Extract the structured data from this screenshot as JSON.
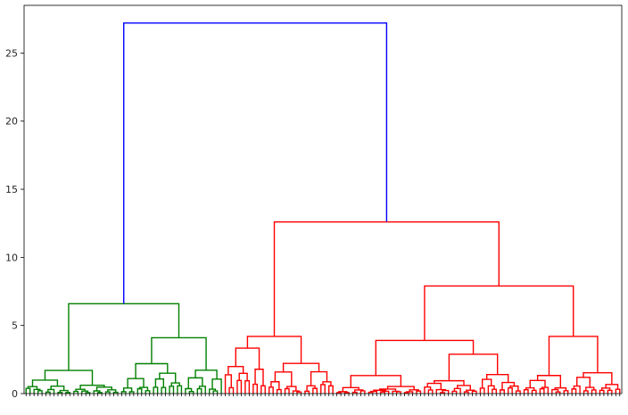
{
  "chart_data": {
    "type": "dendrogram",
    "title": "",
    "xlabel": "",
    "ylabel": "",
    "ylim": [
      0,
      28.5
    ],
    "yticks": [
      0,
      5,
      10,
      15,
      20,
      25
    ],
    "grid": false,
    "leaf_count": 150,
    "colors": {
      "cluster_1": "#008000",
      "cluster_2": "#ff0000",
      "above_threshold": "#0000ff"
    },
    "merges": [
      {
        "name": "root",
        "height": 27.2,
        "children": [
          "green_cluster",
          "red_cluster"
        ],
        "color": "#0000ff"
      },
      {
        "name": "green_cluster",
        "height": 6.6,
        "children": [
          "green_a",
          "green_b"
        ],
        "color": "#008000",
        "leaves": [
          0,
          50
        ]
      },
      {
        "name": "green_a",
        "height": 1.7,
        "leaves": [
          0,
          24
        ],
        "color": "#008000"
      },
      {
        "name": "green_b",
        "height": 4.1,
        "leaves": [
          24,
          50
        ],
        "color": "#008000"
      },
      {
        "name": "red_cluster",
        "height": 12.6,
        "children": [
          "red_a",
          "red_b"
        ],
        "color": "#ff0000",
        "leaves": [
          50,
          150
        ]
      },
      {
        "name": "red_a",
        "height": 4.2,
        "leaves": [
          50,
          78
        ],
        "color": "#ff0000"
      },
      {
        "name": "red_b",
        "height": 7.9,
        "children": [
          "red_b1",
          "red_b2"
        ],
        "color": "#ff0000",
        "leaves": [
          78,
          150
        ]
      },
      {
        "name": "red_b1",
        "height": 3.9,
        "leaves": [
          78,
          125
        ],
        "color": "#ff0000"
      },
      {
        "name": "red_b2",
        "height": 4.2,
        "leaves": [
          125,
          150
        ],
        "color": "#ff0000"
      }
    ]
  }
}
